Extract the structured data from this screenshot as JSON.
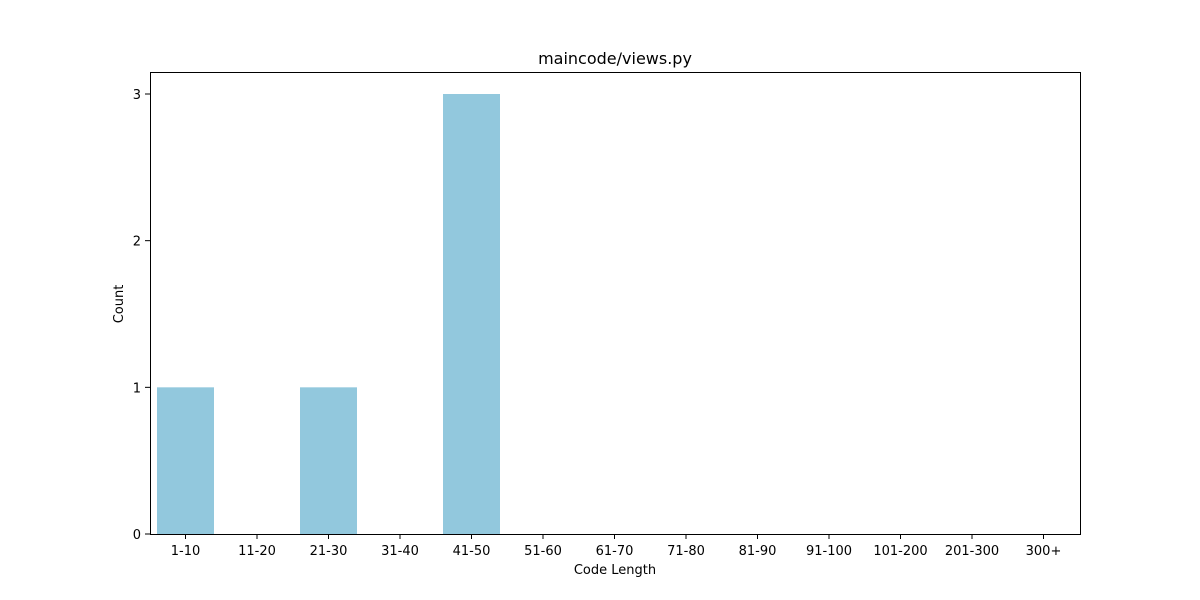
{
  "chart_data": {
    "type": "bar",
    "title": "maincode/views.py",
    "xlabel": "Code Length",
    "ylabel": "Count",
    "categories": [
      "1-10",
      "11-20",
      "21-30",
      "31-40",
      "41-50",
      "51-60",
      "61-70",
      "71-80",
      "81-90",
      "91-100",
      "101-200",
      "201-300",
      "300+"
    ],
    "values": [
      1,
      0,
      1,
      0,
      3,
      0,
      0,
      0,
      0,
      0,
      0,
      0,
      0
    ],
    "yticks": [
      0,
      1,
      2,
      3
    ],
    "ylim": [
      0,
      3.15
    ],
    "bar_color": "#92c8dd",
    "grid": false,
    "legend": "none"
  }
}
